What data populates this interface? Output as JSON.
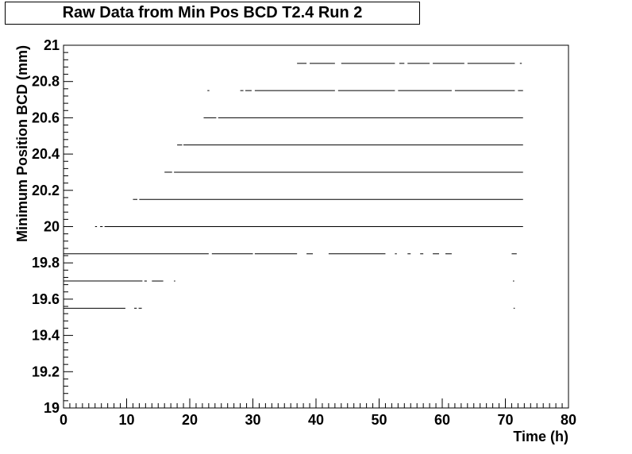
{
  "chart_data": {
    "type": "scatter",
    "title": "Raw Data from Min Pos BCD T2.4 Run 2",
    "xlabel": "Time (h)",
    "ylabel": "Minimum Position BCD (mm)",
    "xlim": [
      0,
      80
    ],
    "ylim": [
      19,
      21
    ],
    "grid": false,
    "x_ticks": [
      "0",
      "10",
      "20",
      "30",
      "40",
      "50",
      "60",
      "70",
      "80"
    ],
    "y_ticks": [
      "19",
      "19.2",
      "19.4",
      "19.6",
      "19.8",
      "20",
      "20.2",
      "20.4",
      "20.6",
      "20.8",
      "21"
    ],
    "marker_color": "#000000",
    "series": [
      {
        "levels": [
          {
            "y": 20.9,
            "segments": [
              [
                37.0,
                38.5
              ],
              [
                39.0,
                43.0
              ],
              [
                44.0,
                52.5
              ],
              [
                53.2,
                54.0
              ],
              [
                54.5,
                58.0
              ],
              [
                58.5,
                63.5
              ],
              [
                64.0,
                71.5
              ],
              [
                72.3,
                72.6
              ]
            ]
          },
          {
            "y": 20.75,
            "segments": [
              [
                22.8,
                23.1
              ],
              [
                28.0,
                28.5
              ],
              [
                28.8,
                29.8
              ],
              [
                30.3,
                43.0
              ],
              [
                43.5,
                52.5
              ],
              [
                53.0,
                61.5
              ],
              [
                62.0,
                71.5
              ],
              [
                72.0,
                72.8
              ]
            ]
          },
          {
            "y": 20.6,
            "segments": [
              [
                22.2,
                24.2
              ],
              [
                24.5,
                72.8
              ]
            ]
          },
          {
            "y": 20.45,
            "segments": [
              [
                18.0,
                18.8
              ],
              [
                19.0,
                72.8
              ]
            ]
          },
          {
            "y": 20.3,
            "segments": [
              [
                16.0,
                17.2
              ],
              [
                17.5,
                72.8
              ]
            ]
          },
          {
            "y": 20.15,
            "segments": [
              [
                11.0,
                11.7
              ],
              [
                12.0,
                72.8
              ]
            ]
          },
          {
            "y": 20.0,
            "segments": [
              [
                5.0,
                5.3
              ],
              [
                5.8,
                6.2
              ],
              [
                6.5,
                72.8
              ]
            ]
          },
          {
            "y": 19.85,
            "segments": [
              [
                0.0,
                23.0
              ],
              [
                23.5,
                30.0
              ],
              [
                30.3,
                37.0
              ],
              [
                38.5,
                39.5
              ],
              [
                42.0,
                51.0
              ],
              [
                52.5,
                52.8
              ],
              [
                54.5,
                55.0
              ],
              [
                56.5,
                57.0
              ],
              [
                58.5,
                59.5
              ],
              [
                60.5,
                61.5
              ],
              [
                71.0,
                71.8
              ]
            ]
          },
          {
            "y": 19.7,
            "segments": [
              [
                0.0,
                12.5
              ],
              [
                12.8,
                13.2
              ],
              [
                14.0,
                15.8
              ],
              [
                17.5,
                17.7
              ],
              [
                71.2,
                71.4
              ]
            ]
          },
          {
            "y": 19.55,
            "segments": [
              [
                0.0,
                9.8
              ],
              [
                11.2,
                11.6
              ],
              [
                11.9,
                12.4
              ],
              [
                71.3,
                71.5
              ]
            ]
          }
        ]
      }
    ]
  }
}
